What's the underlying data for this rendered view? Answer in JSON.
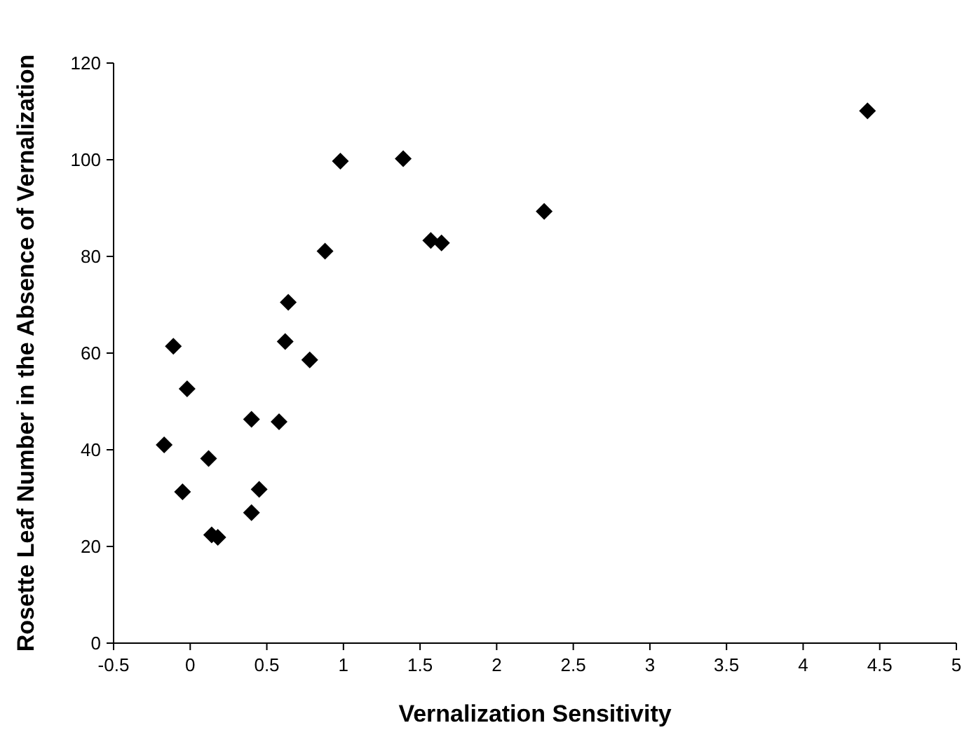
{
  "chart_data": {
    "type": "scatter",
    "xlabel": "Vernalization Sensitivity",
    "ylabel": "Rosette Leaf Number in the Absence of Vernalization",
    "x": [
      -0.11,
      0.62,
      0.78,
      -0.02,
      0.4,
      0.58,
      -0.17,
      0.12,
      -0.05,
      0.45,
      0.4,
      0.14,
      0.18,
      0.98,
      1.39,
      0.88,
      1.57,
      1.64,
      0.64,
      4.42,
      2.31
    ],
    "values": [
      61.4,
      62.4,
      58.6,
      52.6,
      46.3,
      45.8,
      41.0,
      38.2,
      31.3,
      31.8,
      27.0,
      22.4,
      21.9,
      99.7,
      100.2,
      81.1,
      83.3,
      82.8,
      70.5,
      110.1,
      89.3
    ],
    "color": "#000000",
    "marker": "diamond",
    "xlim": [
      -0.5,
      5
    ],
    "xticks": [
      {
        "value": -0.5,
        "label": "-0.5"
      },
      0,
      0.5,
      1,
      1.5,
      2,
      2.5,
      3,
      3.5,
      4,
      4.5,
      5
    ],
    "ylim": [
      0,
      120
    ],
    "yticks": [
      0,
      20,
      40,
      60,
      80,
      100,
      120
    ],
    "grid": false
  }
}
